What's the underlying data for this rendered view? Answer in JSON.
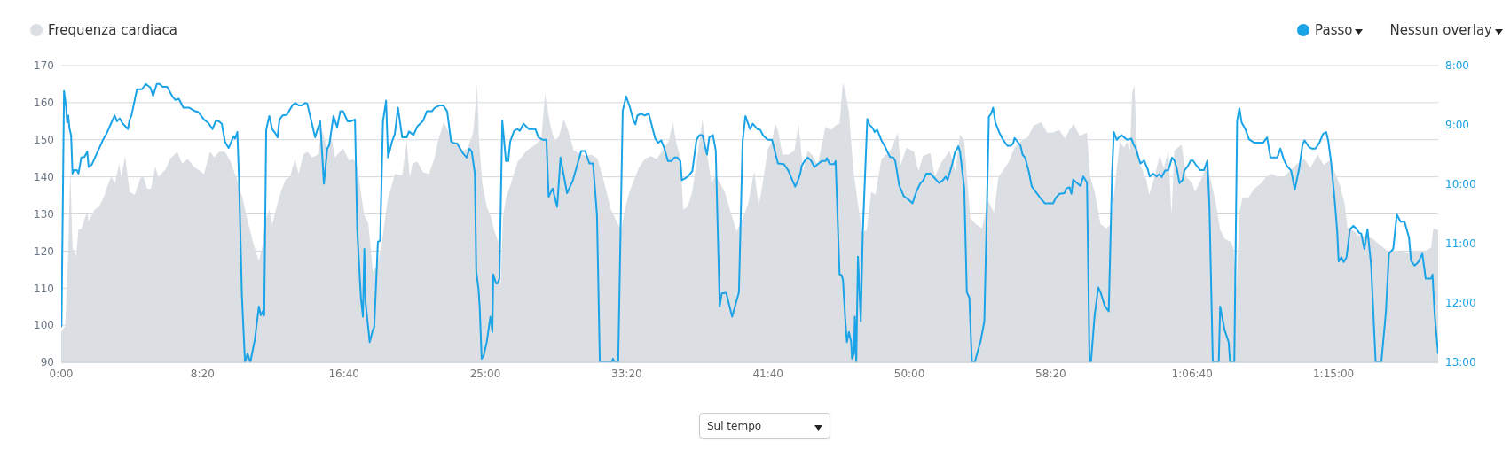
{
  "chart_data": {
    "type": "line",
    "xlim": [
      0,
      4870
    ],
    "xticks": [
      {
        "value": 0,
        "label": "0:00"
      },
      {
        "value": 500,
        "label": "8:20"
      },
      {
        "value": 1000,
        "label": "16:40"
      },
      {
        "value": 1500,
        "label": "25:00"
      },
      {
        "value": 2000,
        "label": "33:20"
      },
      {
        "value": 2500,
        "label": "41:40"
      },
      {
        "value": 3000,
        "label": "50:00"
      },
      {
        "value": 3500,
        "label": "58:20"
      },
      {
        "value": 4000,
        "label": "1:06:40"
      },
      {
        "value": 4500,
        "label": "1:15:00"
      }
    ],
    "ylim": [
      90,
      170
    ],
    "yticks": [
      90,
      100,
      110,
      120,
      130,
      140,
      150,
      160,
      170
    ],
    "y2lim": [
      13,
      8
    ],
    "y2ticks": [
      {
        "value": 8,
        "label": "8:00"
      },
      {
        "value": 9,
        "label": "9:00"
      },
      {
        "value": 10,
        "label": "10:00"
      },
      {
        "value": 11,
        "label": "11:00"
      },
      {
        "value": 12,
        "label": "12:00"
      },
      {
        "value": 13,
        "label": "13:00"
      }
    ],
    "grid": "y",
    "legend": "top",
    "marker": "none",
    "annotations": [
      "Nessun overlay",
      "Sul tempo"
    ],
    "series": [
      {
        "name": "Frequenza cardiaca",
        "type": "area",
        "color": "#dbdfe3",
        "x": [
          0,
          14,
          24,
          32,
          40,
          53,
          61,
          71,
          92,
          97,
          118,
          134,
          150,
          160,
          176,
          191,
          205,
          212,
          226,
          242,
          260,
          280,
          291,
          304,
          317,
          333,
          343,
          369,
          385,
          411,
          427,
          448,
          469,
          505,
          526,
          542,
          558,
          579,
          600,
          620,
          641,
          657,
          678,
          699,
          715,
          720,
          736,
          746,
          762,
          777,
          793,
          809,
          827,
          840,
          856,
          870,
          887,
          908,
          922,
          940,
          955,
          968,
          997,
          1018,
          1034,
          1049,
          1060,
          1072,
          1086,
          1102,
          1117,
          1133,
          1154,
          1180,
          1206,
          1222,
          1233,
          1243,
          1259,
          1280,
          1301,
          1321,
          1332,
          1353,
          1369,
          1389,
          1405,
          1421,
          1437,
          1457,
          1471,
          1478,
          1489,
          1505,
          1520,
          1531,
          1546,
          1554,
          1562,
          1573,
          1588,
          1614,
          1646,
          1677,
          1698,
          1711,
          1729,
          1745,
          1761,
          1777,
          1792,
          1813,
          1834,
          1855,
          1876,
          1897,
          1918,
          1944,
          1970,
          1981,
          1991,
          2007,
          2022,
          2043,
          2064,
          2085,
          2106,
          2127,
          2148,
          2164,
          2174,
          2190,
          2200,
          2216,
          2232,
          2253,
          2268,
          2284,
          2300,
          2315,
          2347,
          2368,
          2389,
          2410,
          2430,
          2451,
          2467,
          2483,
          2499,
          2514,
          2525,
          2535,
          2551,
          2572,
          2593,
          2608,
          2624,
          2640,
          2655,
          2676,
          2703,
          2723,
          2739,
          2753,
          2765,
          2776,
          2786,
          2802,
          2818,
          2833,
          2849,
          2865,
          2880,
          2901,
          2933,
          2959,
          2969,
          2990,
          3016,
          3032,
          3048,
          3074,
          3090,
          3111,
          3142,
          3163,
          3179,
          3194,
          3215,
          3236,
          3257,
          3278,
          3299,
          3315,
          3330,
          3351,
          3372,
          3393,
          3419,
          3440,
          3466,
          3487,
          3508,
          3529,
          3550,
          3566,
          3581,
          3602,
          3628,
          3639,
          3655,
          3676,
          3697,
          3712,
          3728,
          3744,
          3759,
          3770,
          3780,
          3788,
          3796,
          3803,
          3817,
          3838,
          3848,
          3864,
          3885,
          3900,
          3916,
          3927,
          3937,
          3950,
          3963,
          3979,
          4000,
          4010,
          4031,
          4052,
          4068,
          4084,
          4099,
          4115,
          4136,
          4146,
          4157,
          4167,
          4178,
          4199,
          4220,
          4246,
          4261,
          4282,
          4303,
          4324,
          4345,
          4366,
          4397,
          4418,
          4444,
          4465,
          4486,
          4507,
          4523,
          4539,
          4549,
          4565,
          4591,
          4612,
          4638,
          4664,
          4690,
          4722,
          4764,
          4795,
          4826,
          4845,
          4853,
          4870
        ],
        "values": [
          98.2,
          99.8,
          117.7,
          142.4,
          120.9,
          118.5,
          125.9,
          125.9,
          130.8,
          128.0,
          131.2,
          132.0,
          134.4,
          136.8,
          140.0,
          138.4,
          143.6,
          140.0,
          145.6,
          136.0,
          135.2,
          139.6,
          140.0,
          136.8,
          136.8,
          142.8,
          140.0,
          142.0,
          144.8,
          146.8,
          143.6,
          144.8,
          142.8,
          140.8,
          146.8,
          145.2,
          146.8,
          146.8,
          144.0,
          139.6,
          134.4,
          128.8,
          122.5,
          117.3,
          122.5,
          128.0,
          131.2,
          127.2,
          132.0,
          136.0,
          139.2,
          140.0,
          144.8,
          140.8,
          146.0,
          146.8,
          145.2,
          146.0,
          152.7,
          147.9,
          150.7,
          145.2,
          147.7,
          144.4,
          144.8,
          142.4,
          135.6,
          129.6,
          127.6,
          114.5,
          116.1,
          121.7,
          133.6,
          140.8,
          140.4,
          149.5,
          140.0,
          143.6,
          144.1,
          141.2,
          140.8,
          145.2,
          149.5,
          154.7,
          152.3,
          149.5,
          148.7,
          147.1,
          147.5,
          151.9,
          164.7,
          149.5,
          138.4,
          132.0,
          129.2,
          125.7,
          122.5,
          110.5,
          128.8,
          134.4,
          137.6,
          144.0,
          147.1,
          148.7,
          150.3,
          162.3,
          154.3,
          149.5,
          151.1,
          155.5,
          152.7,
          147.1,
          146.4,
          145.6,
          146.0,
          144.8,
          139.2,
          131.2,
          127.2,
          125.7,
          130.4,
          135.2,
          138.4,
          142.4,
          144.8,
          145.6,
          144.8,
          147.1,
          149.5,
          154.7,
          149.5,
          145.2,
          131.2,
          132.0,
          136.0,
          147.1,
          155.5,
          146.4,
          138.4,
          140.4,
          136.0,
          130.4,
          125.3,
          128.8,
          132.8,
          141.6,
          132.0,
          139.2,
          147.5,
          149.5,
          154.3,
          152.7,
          146.0,
          146.0,
          147.1,
          154.3,
          141.6,
          147.1,
          146.0,
          143.2,
          153.5,
          152.7,
          153.9,
          154.3,
          165.5,
          161.9,
          157.5,
          141.6,
          132.8,
          124.9,
          125.7,
          136.0,
          135.2,
          144.8,
          147.1,
          151.9,
          143.2,
          147.9,
          146.8,
          141.6,
          145.6,
          146.4,
          140.0,
          143.6,
          147.1,
          141.6,
          151.5,
          149.5,
          128.8,
          127.2,
          126.1,
          133.6,
          130.4,
          140.0,
          141.6,
          144.0,
          147.9,
          149.5,
          150.7,
          153.9,
          154.7,
          151.9,
          151.9,
          152.7,
          150.3,
          152.7,
          154.3,
          151.1,
          151.9,
          140.0,
          136.0,
          127.2,
          126.1,
          127.2,
          138.4,
          149.5,
          147.9,
          149.5,
          147.1,
          162.7,
          164.7,
          149.5,
          143.2,
          139.2,
          135.2,
          139.2,
          145.6,
          142.4,
          147.1,
          129.6,
          147.1,
          147.9,
          148.7,
          140.0,
          138.4,
          136.0,
          139.2,
          143.2,
          138.4,
          132.8,
          125.7,
          123.3,
          122.5,
          120.9,
          109.7,
          130.4,
          134.4,
          134.4,
          136.8,
          138.4,
          140.0,
          140.8,
          140.0,
          140.0,
          141.6,
          143.2,
          144.8,
          142.4,
          146.0,
          143.2,
          144.4,
          140.8,
          137.6,
          132.8,
          126.4,
          125.7,
          124.1,
          124.1,
          123.3,
          121.7,
          120.1,
          120.1,
          119.3,
          120.1,
          120.1,
          120.9,
          126.1,
          125.7
        ]
      },
      {
        "name": "Passo",
        "color": "#1aa3e6",
        "axis": "y2",
        "x": [
          0,
          1,
          10,
          17,
          21,
          25,
          29,
          35,
          40,
          45,
          55,
          61,
          71,
          82,
          92,
          97,
          108,
          150,
          160,
          189,
          197,
          207,
          218,
          236,
          241,
          249,
          268,
          286,
          299,
          315,
          325,
          338,
          348,
          359,
          375,
          393,
          404,
          416,
          432,
          453,
          474,
          484,
          505,
          521,
          535,
          547,
          558,
          568,
          579,
          592,
          610,
          615,
          623,
          629,
          639,
          650,
          659,
          669,
          685,
          699,
          706,
          713,
          718,
          725,
          736,
          746,
          757,
          765,
          772,
          783,
          798,
          819,
          828,
          840,
          851,
          863,
          870,
          898,
          908,
          916,
          929,
          941,
          948,
          963,
          976,
          987,
          997,
          1013,
          1023,
          1039,
          1047,
          1060,
          1067,
          1072,
          1076,
          1091,
          1102,
          1107,
          1120,
          1128,
          1138,
          1149,
          1156,
          1170,
          1180,
          1191,
          1206,
          1222,
          1230,
          1246,
          1259,
          1280,
          1293,
          1311,
          1321,
          1340,
          1351,
          1365,
          1379,
          1389,
          1400,
          1421,
          1434,
          1444,
          1452,
          1463,
          1468,
          1476,
          1480,
          1487,
          1494,
          1505,
          1518,
          1525,
          1528,
          1538,
          1543,
          1550,
          1560,
          1573,
          1581,
          1588,
          1602,
          1614,
          1622,
          1635,
          1654,
          1677,
          1688,
          1703,
          1716,
          1724,
          1738,
          1754,
          1766,
          1789,
          1810,
          1839,
          1853,
          1868,
          1881,
          1895,
          1905,
          1947,
          1951,
          1958,
          1970,
          1986,
          1998,
          2010,
          2025,
          2031,
          2038,
          2052,
          2064,
          2078,
          2101,
          2111,
          2122,
          2132,
          2146,
          2158,
          2169,
          2179,
          2190,
          2195,
          2206,
          2216,
          2232,
          2247,
          2258,
          2268,
          2284,
          2292,
          2305,
          2315,
          2329,
          2336,
          2352,
          2373,
          2397,
          2410,
          2420,
          2436,
          2446,
          2462,
          2472,
          2483,
          2499,
          2514,
          2535,
          2556,
          2572,
          2585,
          2596,
          2606,
          2614,
          2619,
          2629,
          2640,
          2652,
          2664,
          2676,
          2690,
          2703,
          2708,
          2718,
          2734,
          2739,
          2753,
          2760,
          2765,
          2773,
          2779,
          2786,
          2794,
          2797,
          2804,
          2807,
          2812,
          2818,
          2828,
          2835,
          2851,
          2859,
          2870,
          2877,
          2886,
          2901,
          2914,
          2931,
          2943,
          2950,
          2964,
          2980,
          2995,
          3011,
          3025,
          3039,
          3048,
          3060,
          3074,
          3090,
          3105,
          3119,
          3128,
          3135,
          3152,
          3161,
          3168,
          3173,
          3179,
          3194,
          3203,
          3212,
          3221,
          3231,
          3252,
          3265,
          3273,
          3281,
          3288,
          3296,
          3304,
          3318,
          3330,
          3346,
          3359,
          3367,
          3372,
          3393,
          3400,
          3409,
          3422,
          3433,
          3466,
          3479,
          3508,
          3519,
          3531,
          3548,
          3555,
          3566,
          3573,
          3579,
          3605,
          3615,
          3628,
          3637,
          3642,
          3655,
          3668,
          3676,
          3691,
          3705,
          3717,
          3723,
          3733,
          3749,
          3770,
          3785,
          3793,
          3801,
          3806,
          3817,
          3830,
          3843,
          3850,
          3862,
          3874,
          3883,
          3892,
          3904,
          3916,
          3929,
          3937,
          3945,
          3955,
          3966,
          3972,
          3984,
          3995,
          4003,
          4016,
          4028,
          4042,
          4054,
          4061,
          4073,
          4094,
          4099,
          4115,
          4129,
          4134,
          4149,
          4159,
          4167,
          4175,
          4188,
          4201,
          4220,
          4251,
          4265,
          4277,
          4301,
          4312,
          4324,
          4335,
          4350,
          4363,
          4379,
          4390,
          4397,
          4413,
          4424,
          4436,
          4450,
          4463,
          4474,
          4481,
          4492,
          4505,
          4513,
          4518,
          4528,
          4536,
          4546,
          4558,
          4570,
          4581,
          4591,
          4598,
          4609,
          4620,
          4633,
          4649,
          4669,
          4685,
          4696,
          4711,
          4724,
          4737,
          4751,
          4767,
          4774,
          4787,
          4800,
          4814,
          4826,
          4845,
          4850,
          4858,
          4870
        ],
        "values": [
          11.67,
          12.39,
          8.43,
          8.68,
          8.96,
          8.84,
          9.05,
          9.18,
          9.82,
          9.76,
          9.76,
          9.82,
          9.55,
          9.54,
          9.45,
          9.71,
          9.67,
          9.23,
          9.15,
          8.84,
          8.94,
          8.89,
          8.98,
          9.07,
          8.93,
          8.83,
          8.4,
          8.4,
          8.31,
          8.37,
          8.51,
          8.31,
          8.31,
          8.36,
          8.36,
          8.52,
          8.58,
          8.56,
          8.71,
          8.71,
          8.77,
          8.78,
          8.91,
          8.97,
          9.07,
          8.93,
          8.94,
          8.98,
          9.28,
          9.39,
          9.19,
          9.23,
          9.12,
          9.93,
          11.87,
          13,
          12.85,
          13,
          12.61,
          12.06,
          12.21,
          12.14,
          12.21,
          9.08,
          8.85,
          9.07,
          9.14,
          9.21,
          8.91,
          8.84,
          8.83,
          8.66,
          8.63,
          8.67,
          8.67,
          8.63,
          8.64,
          9.21,
          9.05,
          8.94,
          9.99,
          9.4,
          9.34,
          8.85,
          9.04,
          8.77,
          8.77,
          8.94,
          8.94,
          8.91,
          10.77,
          11.92,
          12.23,
          11.09,
          11.97,
          12.66,
          12.46,
          12.41,
          10.97,
          10.95,
          8.94,
          8.59,
          9.55,
          9.28,
          9.15,
          8.71,
          9.21,
          9.21,
          9.11,
          9.17,
          9.03,
          8.93,
          8.77,
          8.77,
          8.71,
          8.67,
          8.67,
          8.77,
          9.28,
          9.31,
          9.31,
          9.48,
          9.55,
          9.4,
          9.45,
          9.82,
          11.47,
          11.77,
          12.06,
          12.94,
          12.89,
          12.66,
          12.23,
          12.49,
          11.52,
          11.67,
          11.67,
          11.59,
          8.93,
          9.61,
          9.61,
          9.28,
          9.1,
          9.07,
          9.1,
          8.98,
          9.07,
          9.07,
          9.21,
          9.25,
          9.25,
          10.21,
          10.07,
          10.38,
          9.55,
          10.15,
          9.93,
          9.44,
          9.44,
          9.65,
          9.65,
          10.52,
          13,
          13,
          12.94,
          13,
          13,
          8.76,
          8.52,
          8.68,
          8.94,
          8.99,
          8.84,
          8.81,
          8.84,
          8.81,
          9.23,
          9.3,
          9.26,
          9.38,
          9.61,
          9.61,
          9.55,
          9.55,
          9.61,
          9.93,
          9.9,
          9.87,
          9.78,
          9.25,
          9.17,
          9.17,
          9.5,
          9.21,
          9.17,
          9.43,
          12.06,
          11.84,
          11.83,
          12.23,
          11.82,
          9.28,
          8.85,
          9.07,
          8.98,
          9.07,
          9.08,
          9.18,
          9.25,
          9.25,
          9.65,
          9.66,
          9.77,
          9.92,
          10.04,
          9.93,
          9.82,
          9.69,
          9.61,
          9.55,
          9.6,
          9.71,
          9.66,
          9.61,
          9.61,
          9.56,
          9.66,
          9.66,
          9.61,
          11.52,
          11.53,
          11.61,
          12.26,
          12.66,
          12.49,
          12.66,
          12.94,
          12.85,
          12.23,
          13,
          11.22,
          12.31,
          10.82,
          8.9,
          9.0,
          9.05,
          9.12,
          9.08,
          9.26,
          9.37,
          9.54,
          9.55,
          9.61,
          10.02,
          10.2,
          10.25,
          10.32,
          10.12,
          9.98,
          9.94,
          9.82,
          9.82,
          9.9,
          9.98,
          9.93,
          9.87,
          9.93,
          9.65,
          9.46,
          9.41,
          9.36,
          9.45,
          10.07,
          11.82,
          11.91,
          13,
          13,
          12.64,
          12.31,
          10.62,
          8.86,
          8.82,
          8.71,
          8.96,
          9.13,
          9.24,
          9.35,
          9.35,
          9.31,
          9.22,
          9.35,
          9.5,
          9.55,
          9.78,
          10.04,
          10.25,
          10.32,
          10.32,
          10.22,
          10.16,
          10.15,
          10.07,
          10.05,
          10.16,
          9.92,
          10.03,
          9.87,
          9.97,
          13,
          13,
          12.21,
          11.74,
          11.82,
          12.05,
          12.14,
          9.78,
          9.12,
          9.25,
          9.17,
          9.25,
          9.23,
          9.33,
          9.4,
          9.48,
          9.65,
          9.6,
          9.75,
          9.87,
          9.82,
          9.87,
          9.83,
          9.88,
          9.77,
          9.76,
          9.55,
          9.6,
          9.72,
          9.98,
          9.93,
          9.77,
          9.7,
          9.6,
          9.6,
          9.69,
          9.76,
          9.76,
          9.6,
          10.37,
          13,
          13,
          12.06,
          12.46,
          12.66,
          13,
          13,
          8.93,
          8.72,
          8.96,
          9.07,
          9.24,
          9.3,
          9.3,
          9.21,
          9.55,
          9.55,
          9.4,
          9.58,
          9.69,
          9.77,
          10.09,
          9.72,
          9.34,
          9.26,
          9.37,
          9.4,
          9.4,
          9.3,
          9.15,
          9.12,
          9.26,
          9.65,
          10.32,
          10.8,
          11.3,
          11.23,
          11.31,
          11.23,
          10.76,
          10.7,
          10.75,
          10.82,
          10.83,
          11.09,
          10.76,
          11.37,
          13,
          13,
          12.16,
          11.17,
          11.09,
          10.51,
          10.63,
          10.63,
          10.9,
          11.29,
          11.37,
          11.31,
          11.17,
          11.59,
          11.59,
          11.52,
          12.21,
          12.86
        ]
      }
    ]
  }
}
